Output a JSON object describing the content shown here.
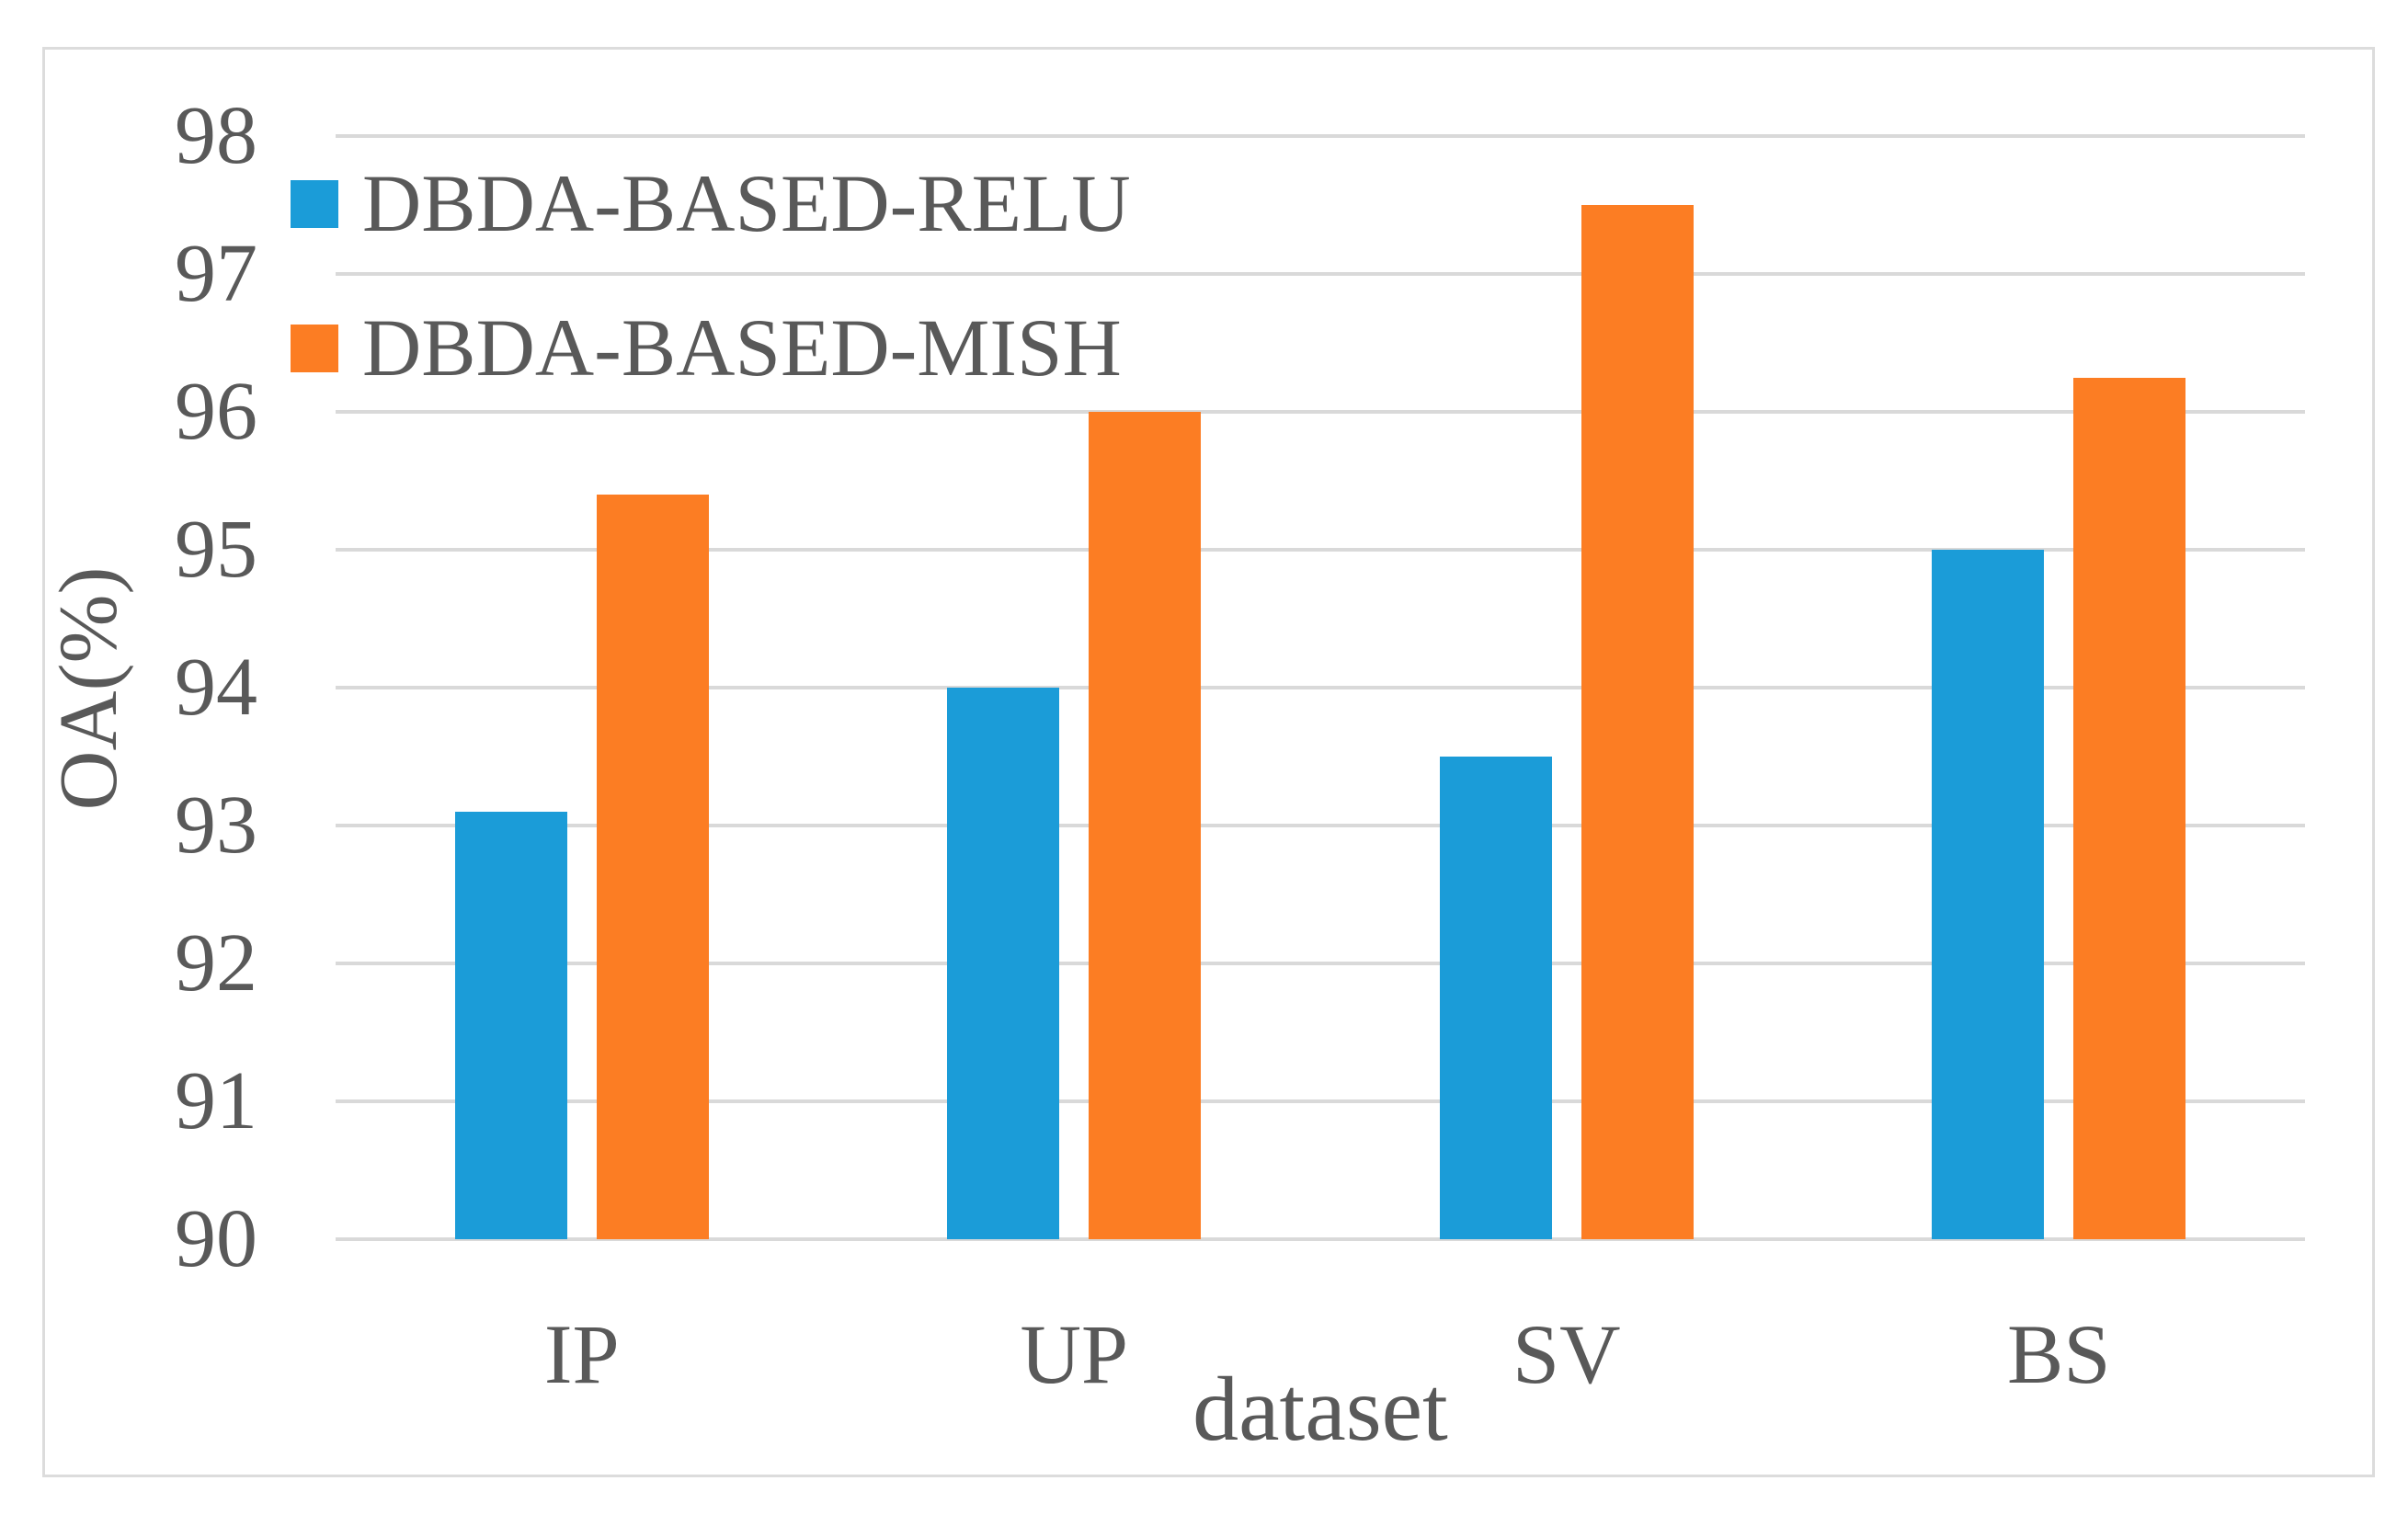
{
  "figure": {
    "background_color": "#ffffff",
    "frame_color": "#dcdcdc",
    "text_color": "#595959",
    "gridline_color": "#d9d9d9"
  },
  "chart_data": {
    "type": "bar",
    "title": "",
    "categories": [
      "IP",
      "UP",
      "SV",
      "BS"
    ],
    "series": [
      {
        "name": "DBDA-BASED-RELU",
        "color": "#1b9cd8",
        "values": [
          93.1,
          94.0,
          93.5,
          95.0
        ]
      },
      {
        "name": "DBDA-BASED-MISH",
        "color": "#fc7d23",
        "values": [
          95.4,
          96.0,
          97.5,
          96.25
        ]
      }
    ],
    "xlabel": "dataset",
    "ylabel": "OA(%)",
    "ylim": [
      90,
      98
    ],
    "yticks": [
      90,
      91,
      92,
      93,
      94,
      95,
      96,
      97,
      98
    ],
    "grid": true,
    "legend_position": "top-left"
  }
}
